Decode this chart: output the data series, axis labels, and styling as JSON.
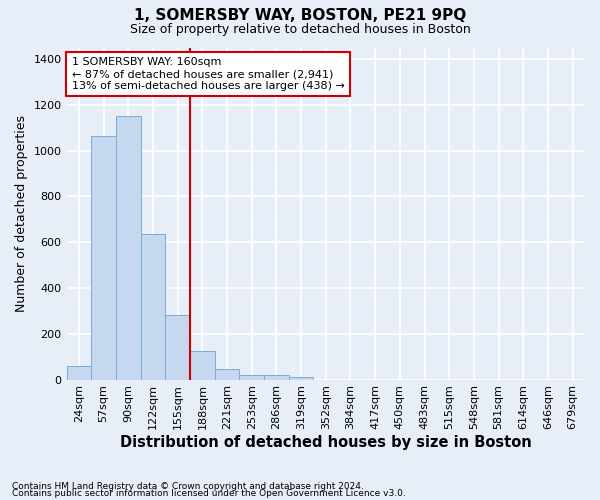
{
  "title": "1, SOMERSBY WAY, BOSTON, PE21 9PQ",
  "subtitle": "Size of property relative to detached houses in Boston",
  "xlabel": "Distribution of detached houses by size in Boston",
  "ylabel": "Number of detached properties",
  "bin_labels": [
    "24sqm",
    "57sqm",
    "90sqm",
    "122sqm",
    "155sqm",
    "188sqm",
    "221sqm",
    "253sqm",
    "286sqm",
    "319sqm",
    "352sqm",
    "384sqm",
    "417sqm",
    "450sqm",
    "483sqm",
    "515sqm",
    "548sqm",
    "581sqm",
    "614sqm",
    "646sqm",
    "679sqm"
  ],
  "bar_heights": [
    60,
    1065,
    1150,
    635,
    280,
    125,
    45,
    20,
    20,
    10,
    0,
    0,
    0,
    0,
    0,
    0,
    0,
    0,
    0,
    0,
    0
  ],
  "bar_color": "#c5d8f0",
  "bar_edgecolor": "#7aadd4",
  "red_line_x": 4.0,
  "red_line_label": "1 SOMERSBY WAY: 160sqm",
  "annotation_line1": "← 87% of detached houses are smaller (2,941)",
  "annotation_line2": "13% of semi-detached houses are larger (438) →",
  "annotation_box_color": "white",
  "annotation_box_edgecolor": "#cc0000",
  "ylim": [
    0,
    1450
  ],
  "yticks": [
    0,
    200,
    400,
    600,
    800,
    1000,
    1200,
    1400
  ],
  "footer1": "Contains HM Land Registry data © Crown copyright and database right 2024.",
  "footer2": "Contains public sector information licensed under the Open Government Licence v3.0.",
  "bg_color": "#e8eef8",
  "plot_bg_color": "#e8eef8",
  "grid_color": "white",
  "title_fontsize": 11,
  "subtitle_fontsize": 9,
  "axis_label_fontsize": 9,
  "tick_fontsize": 8,
  "footer_fontsize": 6.5
}
